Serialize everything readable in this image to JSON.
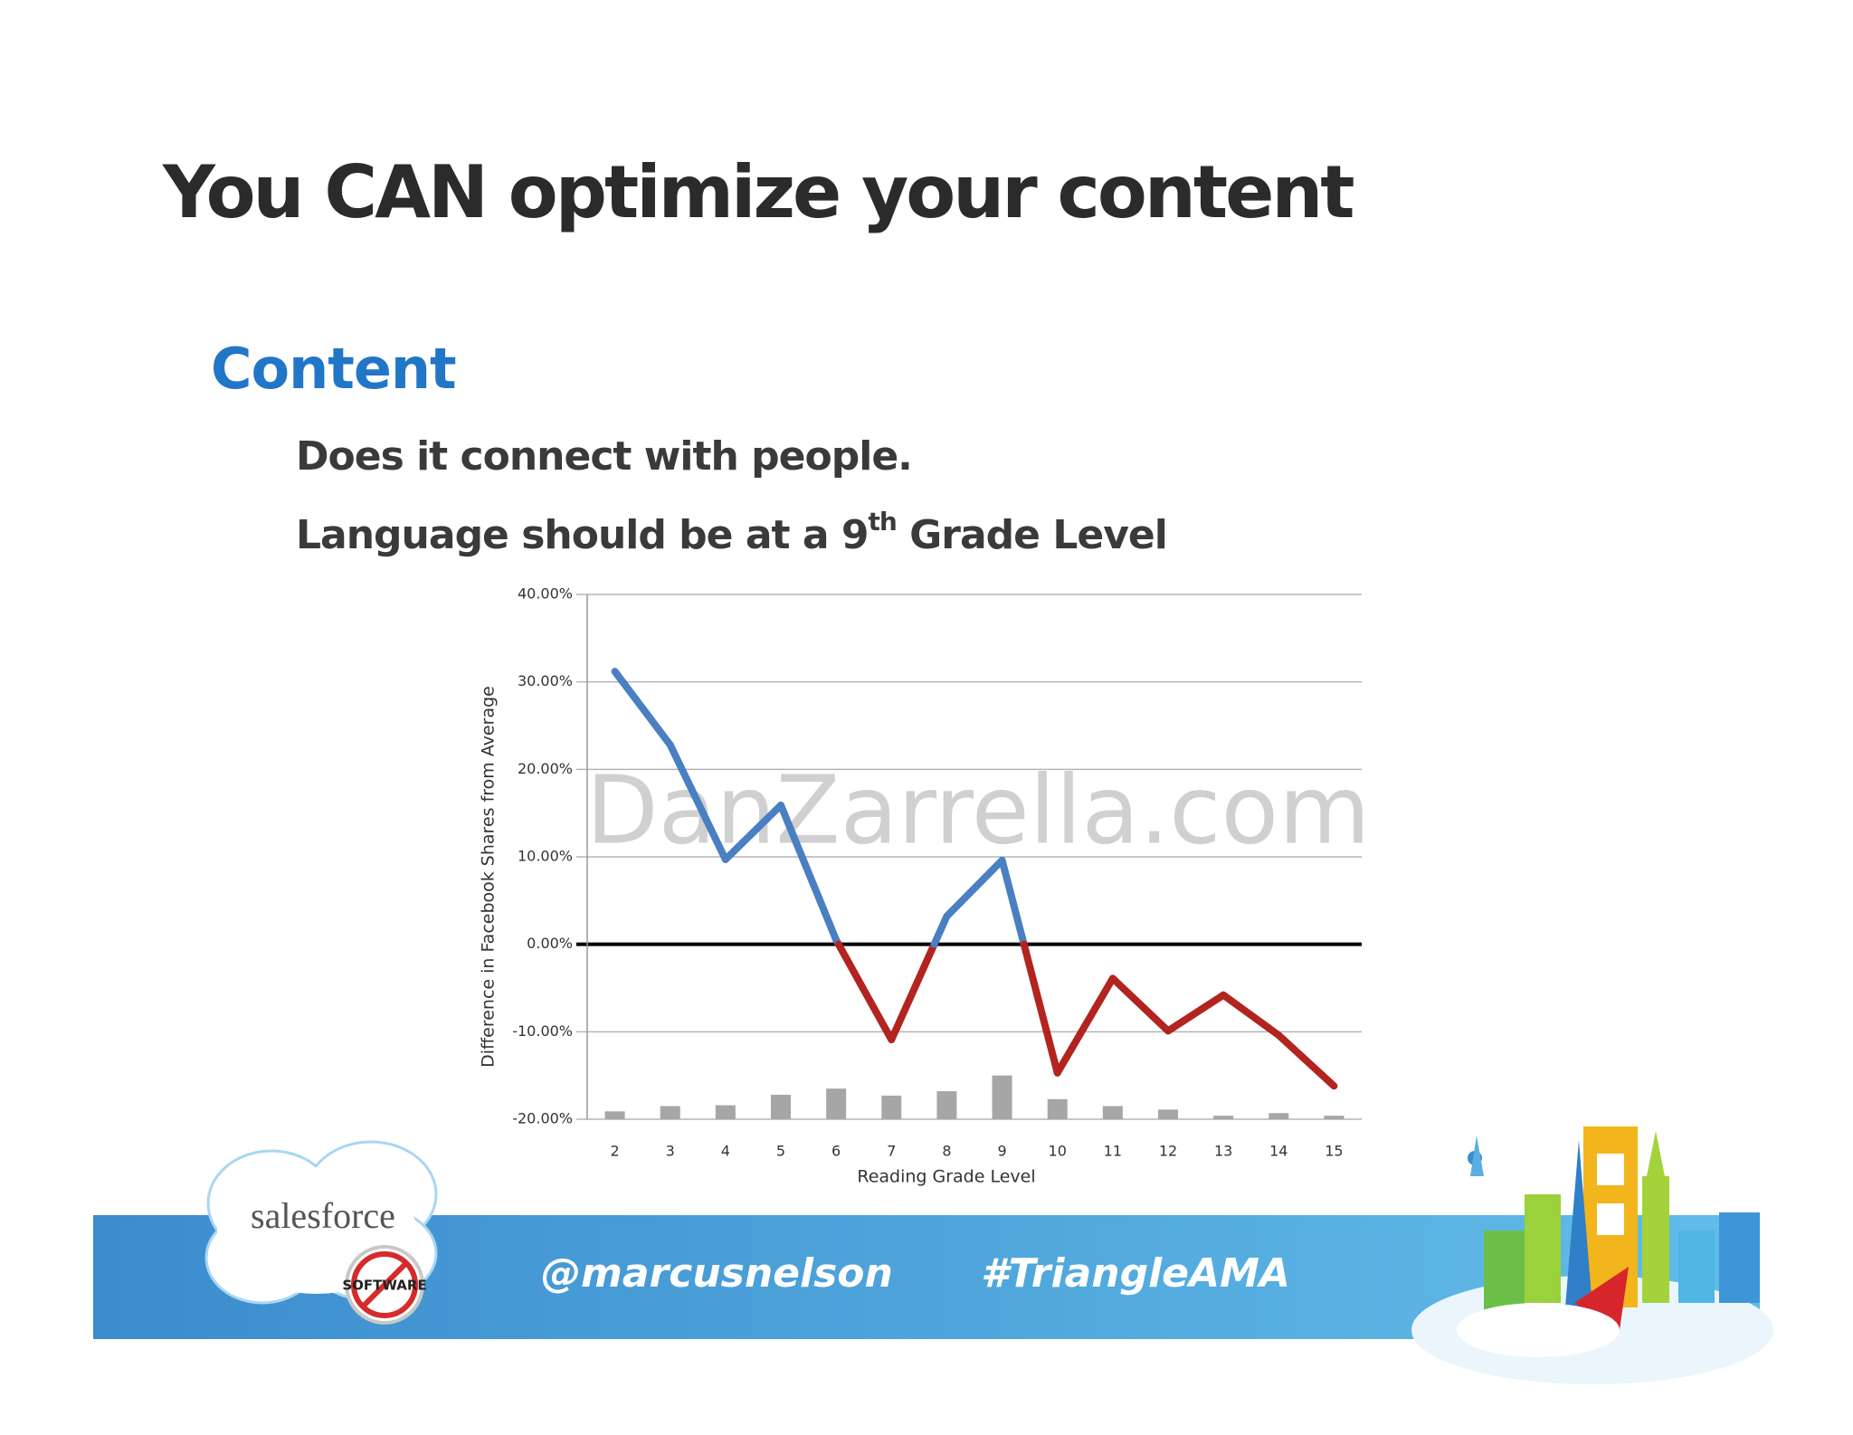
{
  "slide": {
    "title": "You CAN optimize your content",
    "heading": "Content",
    "bullets": [
      "Does it connect with people.",
      {
        "text": "Language should be at a 9",
        "superscript": "th",
        "rest": " Grade Level"
      }
    ]
  },
  "footer": {
    "handle": "@marcusnelson",
    "hashtag": "#TriangleAMA",
    "logo": "salesforce",
    "badge": "SOFTWARE"
  },
  "chart_data": {
    "type": "line",
    "watermark": "DanZarrella.com",
    "x_label": "Reading Grade Level",
    "y_label": "Difference in Facebook Shares from Average",
    "categories": [
      "2",
      "3",
      "4",
      "5",
      "6",
      "7",
      "8",
      "9",
      "10",
      "11",
      "12",
      "13",
      "14",
      "15"
    ],
    "series": [
      {
        "type": "line",
        "color": "#4a7fc1",
        "negative_color": "#b3231f",
        "values": [
          31.2,
          22.8,
          9.7,
          15.9,
          0.5,
          -10.9,
          3.2,
          9.6,
          -14.7,
          -3.9,
          -9.9,
          -5.8,
          -10.4,
          -16.2
        ]
      },
      {
        "type": "bar",
        "color": "#a6a6a6",
        "values": [
          -19.1,
          -18.5,
          -18.4,
          -17.2,
          -16.5,
          -17.3,
          -16.8,
          -15.0,
          -17.7,
          -18.5,
          -18.9,
          -19.6,
          -19.3,
          -19.6
        ]
      }
    ],
    "ylim": [
      -20,
      40
    ],
    "yticks": [
      {
        "value": 40,
        "label": "40.00%"
      },
      {
        "value": 30,
        "label": "30.00%"
      },
      {
        "value": 20,
        "label": "20.00%"
      },
      {
        "value": 10,
        "label": "10.00%"
      },
      {
        "value": 0,
        "label": "0.00%"
      },
      {
        "value": -10,
        "label": "-10.00%"
      },
      {
        "value": -20,
        "label": "-20.00%"
      }
    ],
    "grid": true
  }
}
